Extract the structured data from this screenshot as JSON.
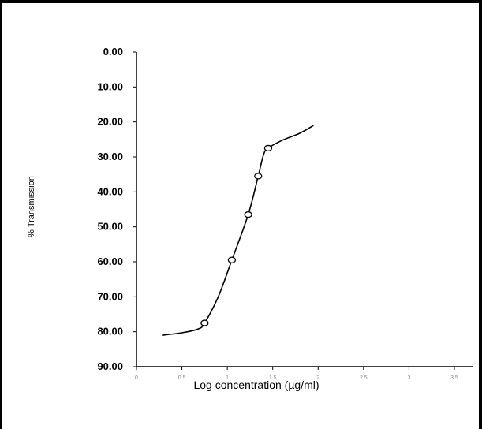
{
  "chart_data": {
    "type": "line",
    "xlabel": "Log concentration (µg/ml)",
    "ylabel": "% Transmission",
    "y_inverted": true,
    "ylim": [
      0,
      90
    ],
    "xlim": [
      0,
      3.7
    ],
    "yticks": [
      "0.00",
      "10.00",
      "20.00",
      "30.00",
      "40.00",
      "50.00",
      "60.00",
      "70.00",
      "80.00",
      "90.00"
    ],
    "xticks": [
      "0",
      "0.5",
      "1",
      "1.5",
      "2",
      "2.5",
      "3",
      "3.5"
    ],
    "grid": false,
    "series": [
      {
        "points": [
          {
            "x": 0.75,
            "y": 77.5
          },
          {
            "x": 1.05,
            "y": 59.5
          },
          {
            "x": 1.23,
            "y": 46.5
          },
          {
            "x": 1.34,
            "y": 35.5
          },
          {
            "x": 1.45,
            "y": 27.5
          }
        ],
        "curve": [
          {
            "x": 0.28,
            "y": 81.0
          },
          {
            "x": 0.5,
            "y": 80.3
          },
          {
            "x": 0.68,
            "y": 79.2
          },
          {
            "x": 0.75,
            "y": 77.5
          },
          {
            "x": 0.9,
            "y": 70.0
          },
          {
            "x": 1.05,
            "y": 59.5
          },
          {
            "x": 1.23,
            "y": 46.5
          },
          {
            "x": 1.34,
            "y": 35.5
          },
          {
            "x": 1.4,
            "y": 29.3
          },
          {
            "x": 1.45,
            "y": 27.5
          },
          {
            "x": 1.6,
            "y": 25.3
          },
          {
            "x": 1.8,
            "y": 23.2
          },
          {
            "x": 1.95,
            "y": 21.0
          }
        ]
      }
    ],
    "line_color": "#000000",
    "marker_fill": "#ffffff"
  }
}
